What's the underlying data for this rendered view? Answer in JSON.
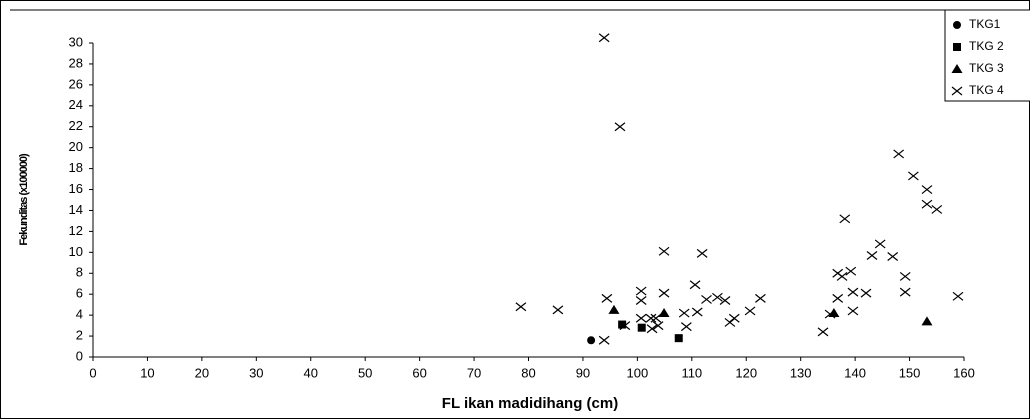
{
  "chart_data": {
    "type": "scatter",
    "xlabel": "FL ikan madidihang (cm)",
    "ylabel": "Fekunditas (x100000)",
    "xlim": [
      0,
      160
    ],
    "xticks": [
      0,
      10,
      20,
      30,
      40,
      50,
      60,
      70,
      80,
      90,
      100,
      110,
      120,
      130,
      140,
      150,
      160
    ],
    "ylim": [
      0,
      30
    ],
    "yticks": [
      0,
      2,
      4,
      6,
      8,
      10,
      12,
      14,
      16,
      18,
      20,
      22,
      24,
      26,
      28,
      30
    ],
    "grid": false,
    "legend": "right",
    "series": [
      {
        "name": "TKG1",
        "color": "#000000",
        "marker": "circle",
        "x": [
          91.5
        ],
        "y": [
          1.6
        ]
      },
      {
        "name": "TKG 2",
        "color": "#000000",
        "marker": "square",
        "x": [
          97.2,
          100.8,
          107.6
        ],
        "y": [
          3.1,
          2.8,
          1.8
        ]
      },
      {
        "name": "TKG 3",
        "color": "#000000",
        "marker": "triangle",
        "x": [
          95.7,
          104.9,
          136.1,
          153.2
        ],
        "y": [
          4.5,
          4.2,
          4.2,
          3.4
        ]
      },
      {
        "name": "TKG 4",
        "color": "#000000",
        "marker": "x",
        "x": [
          93.9,
          96.8,
          78.6,
          85.4,
          93.9,
          94.4,
          100.7,
          100.7,
          100.7,
          97.7,
          102.5,
          103.4,
          102.7,
          103.8,
          104.9,
          104.9,
          109,
          108.6,
          110.6,
          111,
          111.9,
          112.7,
          114.7,
          116.1,
          117,
          117.8,
          120.7,
          122.6,
          134.1,
          135.4,
          136.8,
          136.8,
          137.6,
          138.1,
          139.2,
          139.6,
          139.6,
          142,
          143.1,
          144.6,
          146.9,
          148,
          149.2,
          149.2,
          150.7,
          153.2,
          153.2,
          155,
          158.9
        ],
        "y": [
          30.5,
          22.0,
          4.8,
          4.5,
          1.6,
          5.6,
          6.3,
          5.4,
          3.7,
          3.0,
          3.7,
          3.7,
          2.7,
          3.0,
          10.1,
          6.1,
          2.9,
          4.2,
          6.9,
          4.3,
          9.9,
          5.5,
          5.7,
          5.4,
          3.3,
          3.7,
          4.4,
          5.6,
          2.4,
          4.1,
          5.6,
          8.0,
          7.7,
          13.2,
          8.2,
          6.2,
          4.4,
          6.1,
          9.7,
          10.8,
          9.6,
          19.4,
          6.2,
          7.7,
          17.3,
          16.0,
          14.6,
          14.1,
          5.8
        ]
      }
    ]
  }
}
